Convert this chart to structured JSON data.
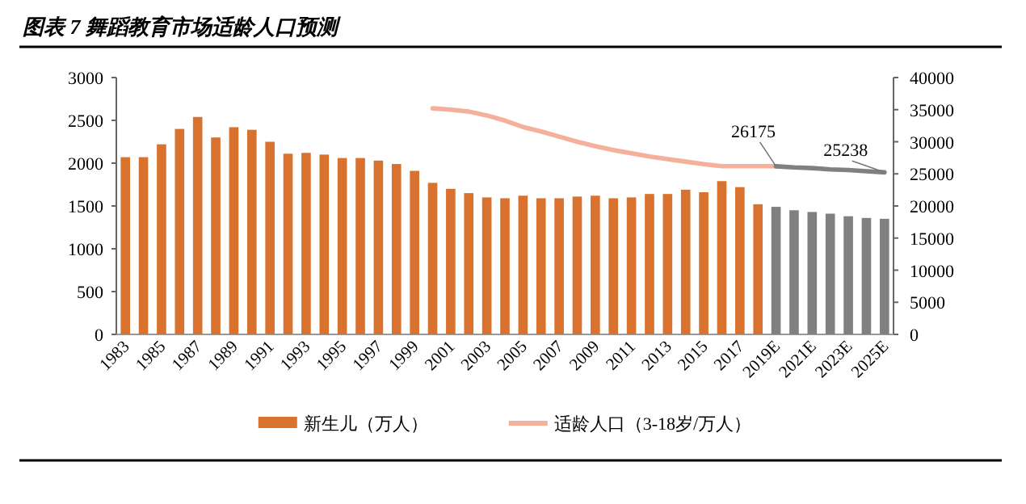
{
  "chart_data": {
    "type": "bar",
    "title": "图表 7 舞蹈教育市场适龄人口预测",
    "categories": [
      "1983",
      null,
      "1985",
      null,
      "1987",
      null,
      "1989",
      null,
      "1991",
      null,
      "1993",
      null,
      "1995",
      null,
      "1997",
      null,
      "1999",
      null,
      "2001",
      null,
      "2003",
      null,
      "2005",
      null,
      "2007",
      null,
      "2009",
      null,
      "2011",
      null,
      "2013",
      null,
      "2015",
      null,
      "2017",
      null,
      "2019E",
      null,
      "2021E",
      null,
      "2023E",
      null,
      "2025E"
    ],
    "series": [
      {
        "name": "新生儿（万人）",
        "color": "#d9722e",
        "colors": [
          "#d9722e",
          "#d9722e",
          "#d9722e",
          "#d9722e",
          "#d9722e",
          "#d9722e",
          "#d9722e",
          "#d9722e",
          "#d9722e",
          "#d9722e",
          "#d9722e",
          "#d9722e",
          "#d9722e",
          "#d9722e",
          "#d9722e",
          "#d9722e",
          "#d9722e",
          "#d9722e",
          "#d9722e",
          "#d9722e",
          "#d9722e",
          "#d9722e",
          "#d9722e",
          "#d9722e",
          "#d9722e",
          "#d9722e",
          "#d9722e",
          "#d9722e",
          "#d9722e",
          "#d9722e",
          "#d9722e",
          "#d9722e",
          "#d9722e",
          "#d9722e",
          "#d9722e",
          "#d9722e",
          "#808080",
          "#808080",
          "#808080",
          "#808080",
          "#808080",
          "#808080",
          "#808080"
        ],
        "values": [
          2070,
          2070,
          2220,
          2400,
          2540,
          2300,
          2420,
          2390,
          2250,
          2110,
          2120,
          2100,
          2060,
          2060,
          2030,
          1990,
          1910,
          1770,
          1700,
          1650,
          1600,
          1590,
          1620,
          1590,
          1590,
          1610,
          1620,
          1590,
          1600,
          1640,
          1640,
          1690,
          1660,
          1790,
          1720,
          1520,
          1490,
          1450,
          1430,
          1410,
          1380,
          1360,
          1350
        ]
      },
      {
        "name": "适龄人口（3-18岁/万人）",
        "type": "line",
        "axis": "y2",
        "color": "#f4b09a",
        "values": [
          null,
          null,
          null,
          null,
          null,
          null,
          null,
          null,
          null,
          null,
          null,
          null,
          null,
          null,
          null,
          null,
          null,
          35200,
          35000,
          34700,
          34100,
          33300,
          32300,
          31600,
          30800,
          30000,
          29300,
          28700,
          28200,
          27700,
          27300,
          26900,
          26500,
          26200,
          26200,
          26200,
          26200,
          null,
          null,
          null,
          null,
          null,
          null
        ]
      },
      {
        "type": "line",
        "axis": "y2",
        "color": "#808080",
        "values": [
          null,
          null,
          null,
          null,
          null,
          null,
          null,
          null,
          null,
          null,
          null,
          null,
          null,
          null,
          null,
          null,
          null,
          null,
          null,
          null,
          null,
          null,
          null,
          null,
          null,
          null,
          null,
          null,
          null,
          null,
          null,
          null,
          null,
          null,
          null,
          null,
          26175,
          26000,
          25900,
          25700,
          25600,
          25400,
          25238
        ],
        "value_labels": [
          null,
          null,
          null,
          null,
          null,
          null,
          null,
          null,
          null,
          null,
          null,
          null,
          null,
          null,
          null,
          null,
          null,
          null,
          null,
          null,
          null,
          null,
          null,
          null,
          null,
          null,
          null,
          null,
          null,
          null,
          null,
          null,
          null,
          null,
          null,
          null,
          "26175",
          null,
          null,
          null,
          null,
          null,
          "25238"
        ]
      }
    ],
    "ylim": [
      0,
      3000
    ],
    "yticks": [
      0,
      500,
      1000,
      1500,
      2000,
      2500,
      3000
    ],
    "y2lim": [
      0,
      40000
    ],
    "y2ticks": [
      0,
      5000,
      10000,
      15000,
      20000,
      25000,
      30000,
      35000,
      40000
    ],
    "legend": "bottom",
    "grid": false
  }
}
